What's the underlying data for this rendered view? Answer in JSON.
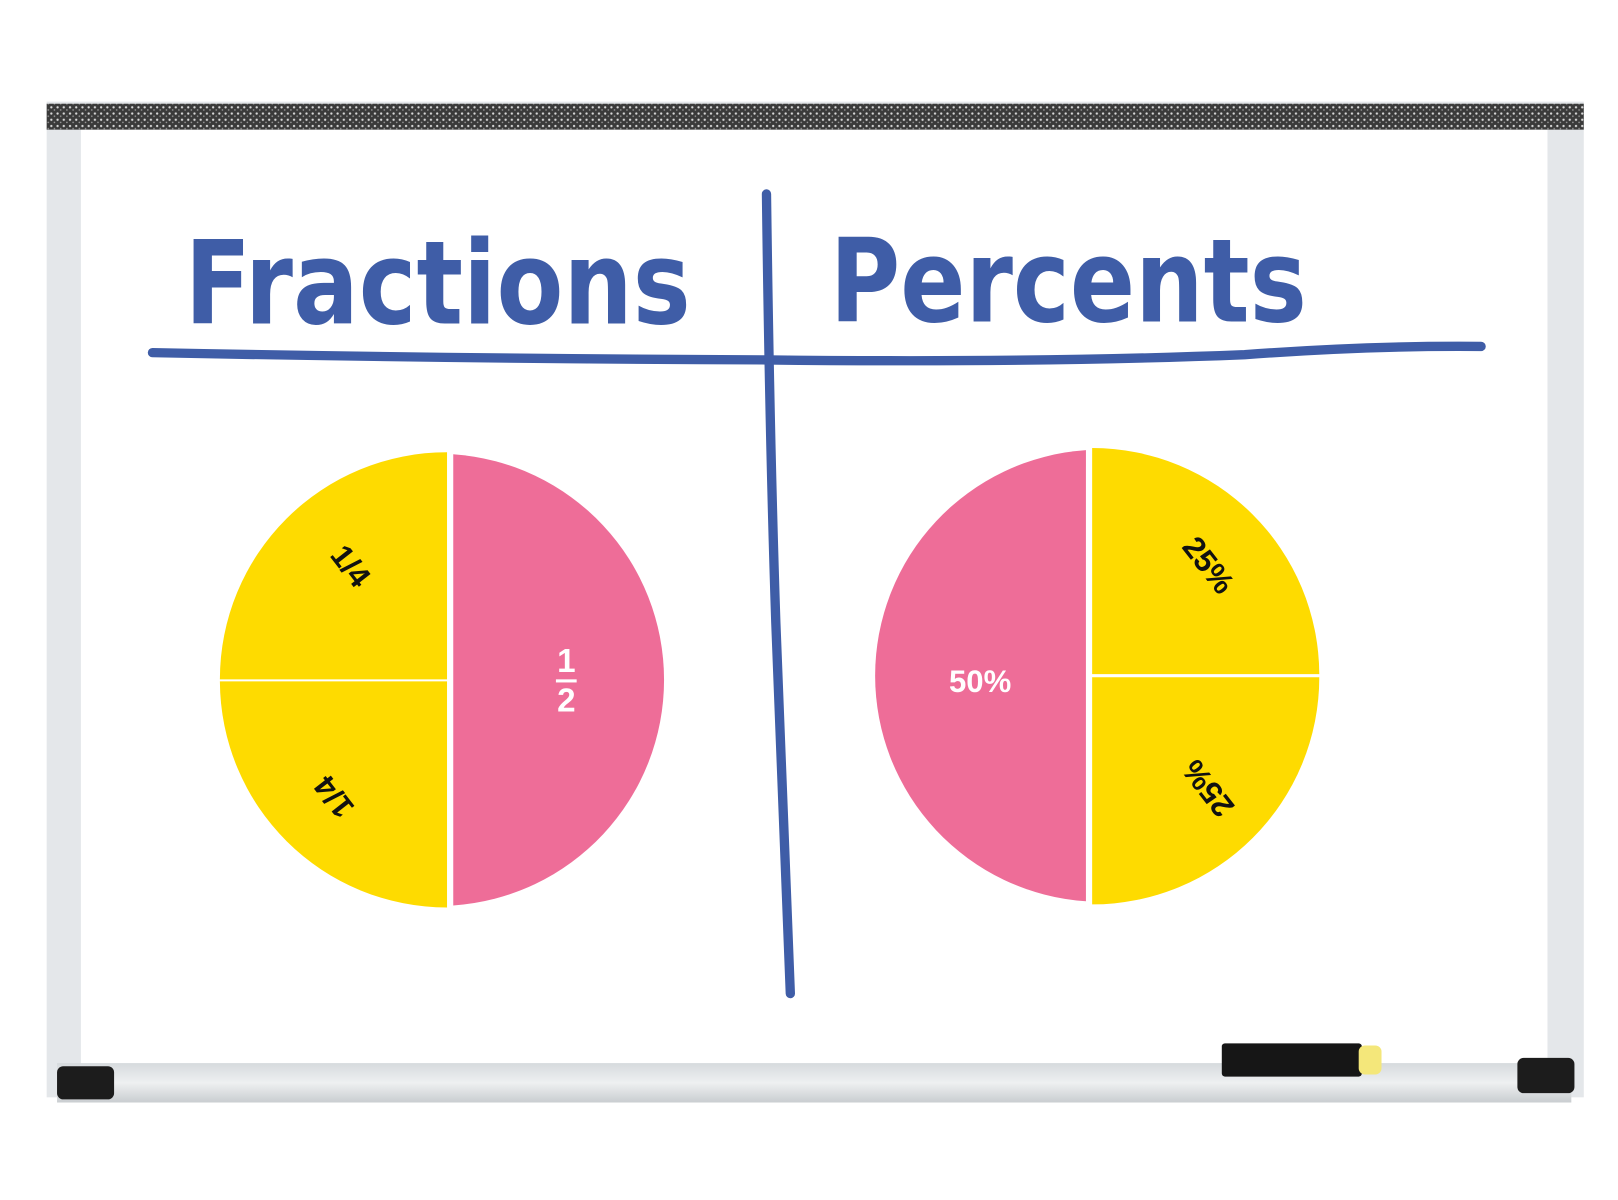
{
  "board": {
    "left_heading": "Fractions",
    "right_heading": "Percents"
  },
  "fractions_circle": {
    "quarter_top": "1/4",
    "quarter_bottom": "1/4",
    "half_numerator": "1",
    "half_denominator": "2"
  },
  "percents_circle": {
    "half": "50%",
    "quarter_top": "25%",
    "quarter_bottom": "25%"
  },
  "colors": {
    "ink": "#3f5da7",
    "yellow": "#fedb00",
    "pink": "#ee6d98"
  }
}
